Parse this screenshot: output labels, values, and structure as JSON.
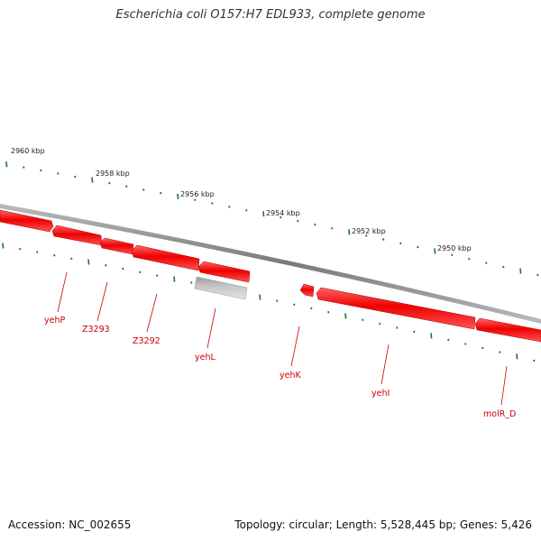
{
  "title": "Escherichia coli O157:H7 EDL933, complete genome",
  "footer": {
    "accession": "Accession: NC_002655",
    "summary": "Topology: circular; Length: 5,528,445 bp; Genes: 5,426"
  },
  "colors": {
    "backbone": "#888888",
    "ticks": "#1a7a1a",
    "gene_fill": "#ee0000",
    "gene_dark": "#990000",
    "pseudo_fill": "#c8c8c8",
    "label": "#cc0000"
  },
  "scale_labels": [
    "2960 kbp",
    "2958 kbp",
    "2956 kbp",
    "2954 kbp",
    "2952 kbp",
    "2950 kbp"
  ],
  "genes": [
    {
      "label": "yehP"
    },
    {
      "label": "Z3293"
    },
    {
      "label": "Z3292"
    },
    {
      "label": "yehL"
    },
    {
      "label": "yehK"
    },
    {
      "label": "yehI"
    },
    {
      "label": "molR_D"
    }
  ]
}
